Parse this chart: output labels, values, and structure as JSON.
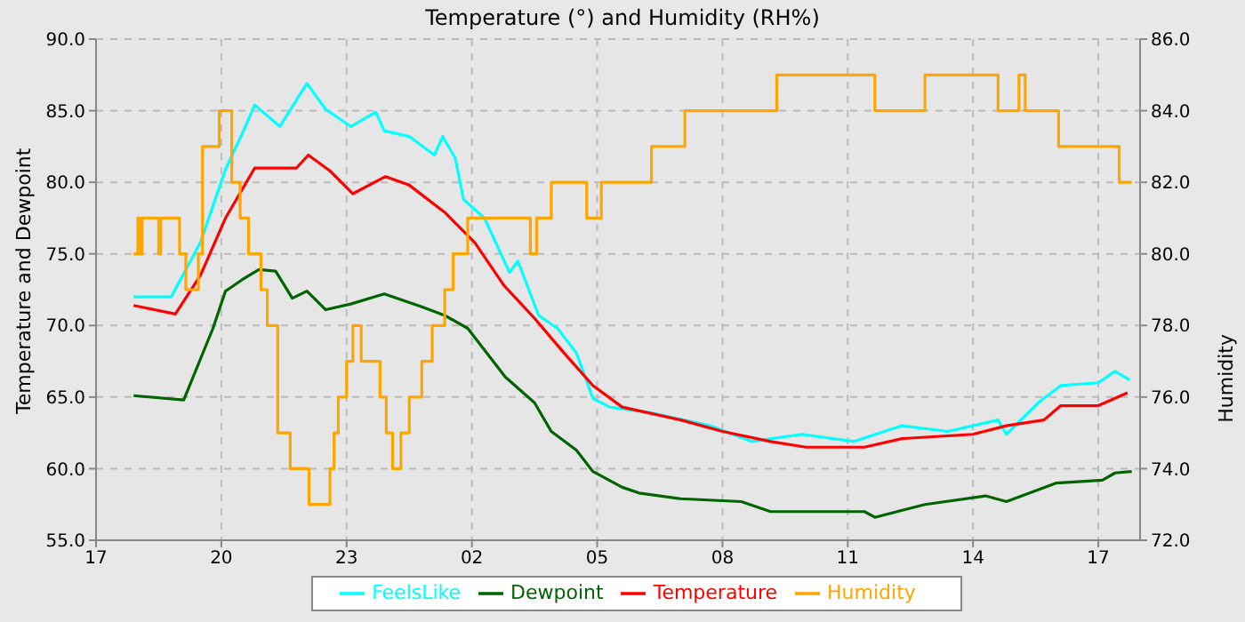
{
  "chart_data": {
    "type": "line",
    "title": "Temperature (°) and Humidity (RH%)",
    "ylabel": "Temperature and Dewpoint",
    "y2label": "Humidity",
    "xlim": [
      "--01-01T17:00",
      "--01-02T18:00"
    ],
    "xticks": [
      {
        "value": "--01-01T17:00",
        "label": "17"
      },
      {
        "value": "--01-01T20:00",
        "label": "20"
      },
      {
        "value": "--01-01T23:00",
        "label": "23"
      },
      {
        "value": "--01-02T02:00",
        "label": "02"
      },
      {
        "value": "--01-02T05:00",
        "label": "05"
      },
      {
        "value": "--01-02T08:00",
        "label": "08"
      },
      {
        "value": "--01-02T11:00",
        "label": "11"
      },
      {
        "value": "--01-02T14:00",
        "label": "14"
      },
      {
        "value": "--01-02T17:00",
        "label": "17"
      }
    ],
    "ylim": [
      55,
      90
    ],
    "yticks": [
      {
        "value": 55,
        "label": "55.0"
      },
      {
        "value": 60,
        "label": "60.0"
      },
      {
        "value": 65,
        "label": "65.0"
      },
      {
        "value": 70,
        "label": "70.0"
      },
      {
        "value": 75,
        "label": "75.0"
      },
      {
        "value": 80,
        "label": "80.0"
      },
      {
        "value": 85,
        "label": "85.0"
      },
      {
        "value": 90,
        "label": "90.0"
      }
    ],
    "y2lim": [
      72,
      86
    ],
    "y2ticks": [
      {
        "value": 72,
        "label": "72.0"
      },
      {
        "value": 74,
        "label": "74.0"
      },
      {
        "value": 76,
        "label": "76.0"
      },
      {
        "value": 78,
        "label": "78.0"
      },
      {
        "value": 80,
        "label": "80.0"
      },
      {
        "value": 82,
        "label": "82.0"
      },
      {
        "value": 84,
        "label": "84.0"
      },
      {
        "value": 86,
        "label": "86.0"
      }
    ],
    "grid": true,
    "legend": "bottom",
    "series": [
      {
        "name": "FeelsLike",
        "color": "#00ffff",
        "x": [
          "--01-01T17:54",
          "--01-01T18:48",
          "--01-01T19:30",
          "--01-01T20:06",
          "--01-01T20:30",
          "--01-01T20:48",
          "--01-01T21:24",
          "--01-01T22:03",
          "--01-01T22:30",
          "--01-01T23:06",
          "--01-01T23:42",
          "--01-01T23:54",
          "--01-02T00:30",
          "--01-02T01:06",
          "--01-02T01:18",
          "--01-02T01:36",
          "--01-02T01:48",
          "--01-02T02:18",
          "--01-02T02:54",
          "--01-02T03:06",
          "--01-02T03:36",
          "--01-02T04:03",
          "--01-02T04:30",
          "--01-02T04:54",
          "--01-02T05:18",
          "--01-02T06:18",
          "--01-02T07:42",
          "--01-02T08:42",
          "--01-02T09:54",
          "--01-02T11:09",
          "--01-02T12:18",
          "--01-02T13:24",
          "--01-02T14:36",
          "--01-02T14:48",
          "--01-02T15:36",
          "--01-02T16:06",
          "--01-02T17:00",
          "--01-02T17:24",
          "--01-02T17:45"
        ],
        "values": [
          72.0,
          72.0,
          75.8,
          80.9,
          83.4,
          85.4,
          83.9,
          86.9,
          85.1,
          83.9,
          84.9,
          83.6,
          83.2,
          81.9,
          83.2,
          81.7,
          78.8,
          77.5,
          73.7,
          74.5,
          70.7,
          69.8,
          68.1,
          64.9,
          64.3,
          63.9,
          63.0,
          61.9,
          62.4,
          61.9,
          63.0,
          62.6,
          63.4,
          62.4,
          64.7,
          65.8,
          66.0,
          66.8,
          66.2
        ]
      },
      {
        "name": "Dewpoint",
        "color": "#006400",
        "x": [
          "--01-01T17:54",
          "--01-01T19:06",
          "--01-01T19:48",
          "--01-01T20:06",
          "--01-01T20:30",
          "--01-01T20:54",
          "--01-01T21:18",
          "--01-01T21:42",
          "--01-01T22:03",
          "--01-01T22:30",
          "--01-01T23:06",
          "--01-01T23:54",
          "--01-02T00:48",
          "--01-02T01:21",
          "--01-02T01:54",
          "--01-02T02:48",
          "--01-02T03:30",
          "--01-02T03:54",
          "--01-02T04:30",
          "--01-02T04:54",
          "--01-02T05:36",
          "--01-02T06:00",
          "--01-02T07:00",
          "--01-02T08:27",
          "--01-02T09:09",
          "--01-02T11:24",
          "--01-02T11:39",
          "--01-02T12:51",
          "--01-02T14:18",
          "--01-02T14:48",
          "--01-02T16:00",
          "--01-02T17:06",
          "--01-02T17:24",
          "--01-02T17:48"
        ],
        "values": [
          65.1,
          64.8,
          69.8,
          72.4,
          73.2,
          73.9,
          73.8,
          71.9,
          72.4,
          71.1,
          71.5,
          72.2,
          71.3,
          70.7,
          69.8,
          66.4,
          64.6,
          62.6,
          61.3,
          59.8,
          58.7,
          58.3,
          57.9,
          57.7,
          57.0,
          57.0,
          56.6,
          57.5,
          58.1,
          57.7,
          59.0,
          59.2,
          59.7,
          59.8
        ]
      },
      {
        "name": "Temperature",
        "color": "#ff0000",
        "x": [
          "--01-01T17:54",
          "--01-01T18:54",
          "--01-01T19:30",
          "--01-01T20:06",
          "--01-01T20:48",
          "--01-01T21:48",
          "--01-01T22:05",
          "--01-01T22:36",
          "--01-01T23:09",
          "--01-01T23:56",
          "--01-02T00:30",
          "--01-02T01:21",
          "--01-02T02:04",
          "--01-02T02:46",
          "--01-02T03:30",
          "--01-02T04:12",
          "--01-02T04:54",
          "--01-02T05:36",
          "--01-02T07:00",
          "--01-02T08:00",
          "--01-02T09:09",
          "--01-02T10:00",
          "--01-02T11:24",
          "--01-02T12:18",
          "--01-02T14:00",
          "--01-02T14:48",
          "--01-02T15:42",
          "--01-02T16:06",
          "--01-02T17:00",
          "--01-02T17:42"
        ],
        "values": [
          71.4,
          70.8,
          73.5,
          77.5,
          81.0,
          81.0,
          81.9,
          80.8,
          79.2,
          80.4,
          79.8,
          77.9,
          75.8,
          72.8,
          70.5,
          68.1,
          65.8,
          64.3,
          63.4,
          62.6,
          61.9,
          61.5,
          61.5,
          62.1,
          62.4,
          63.0,
          63.4,
          64.4,
          64.4,
          65.3
        ]
      },
      {
        "name": "Humidity",
        "type": "step",
        "axis": "y2",
        "color": "#ffa500",
        "x": [
          "--01-01T17:54",
          "--01-01T18:00",
          "--01-01T18:03",
          "--01-01T18:06",
          "--01-01T18:30",
          "--01-01T18:33",
          "--01-01T19:00",
          "--01-01T19:09",
          "--01-01T19:27",
          "--01-01T19:33",
          "--01-01T19:57",
          "--01-01T20:15",
          "--01-01T20:27",
          "--01-01T20:39",
          "--01-01T20:57",
          "--01-01T21:06",
          "--01-01T21:21",
          "--01-01T21:39",
          "--01-01T22:06",
          "--01-01T22:36",
          "--01-01T22:42",
          "--01-01T22:48",
          "--01-01T23:00",
          "--01-01T23:09",
          "--01-01T23:21",
          "--01-01T23:48",
          "--01-01T23:57",
          "--01-02T00:06",
          "--01-02T00:18",
          "--01-02T00:30",
          "--01-02T00:48",
          "--01-02T01:03",
          "--01-02T01:21",
          "--01-02T01:33",
          "--01-02T01:54",
          "--01-02T03:24",
          "--01-02T03:33",
          "--01-02T03:54",
          "--01-02T04:45",
          "--01-02T05:06",
          "--01-02T06:18",
          "--01-02T07:06",
          "--01-02T09:18",
          "--01-02T11:39",
          "--01-02T12:51",
          "--01-02T14:36",
          "--01-02T15:06",
          "--01-02T15:15",
          "--01-02T16:03",
          "--01-02T17:30",
          "--01-02T17:48"
        ],
        "values": [
          80,
          81,
          80,
          81,
          80,
          81,
          80,
          79,
          80,
          83,
          84,
          82,
          81,
          80,
          79,
          78,
          75,
          74,
          73,
          74,
          75,
          76,
          77,
          78,
          77,
          76,
          75,
          74,
          75,
          76,
          77,
          78,
          79,
          80,
          81,
          80,
          81,
          82,
          81,
          82,
          83,
          84,
          85,
          84,
          85,
          84,
          85,
          84,
          83,
          82,
          82
        ]
      }
    ]
  }
}
